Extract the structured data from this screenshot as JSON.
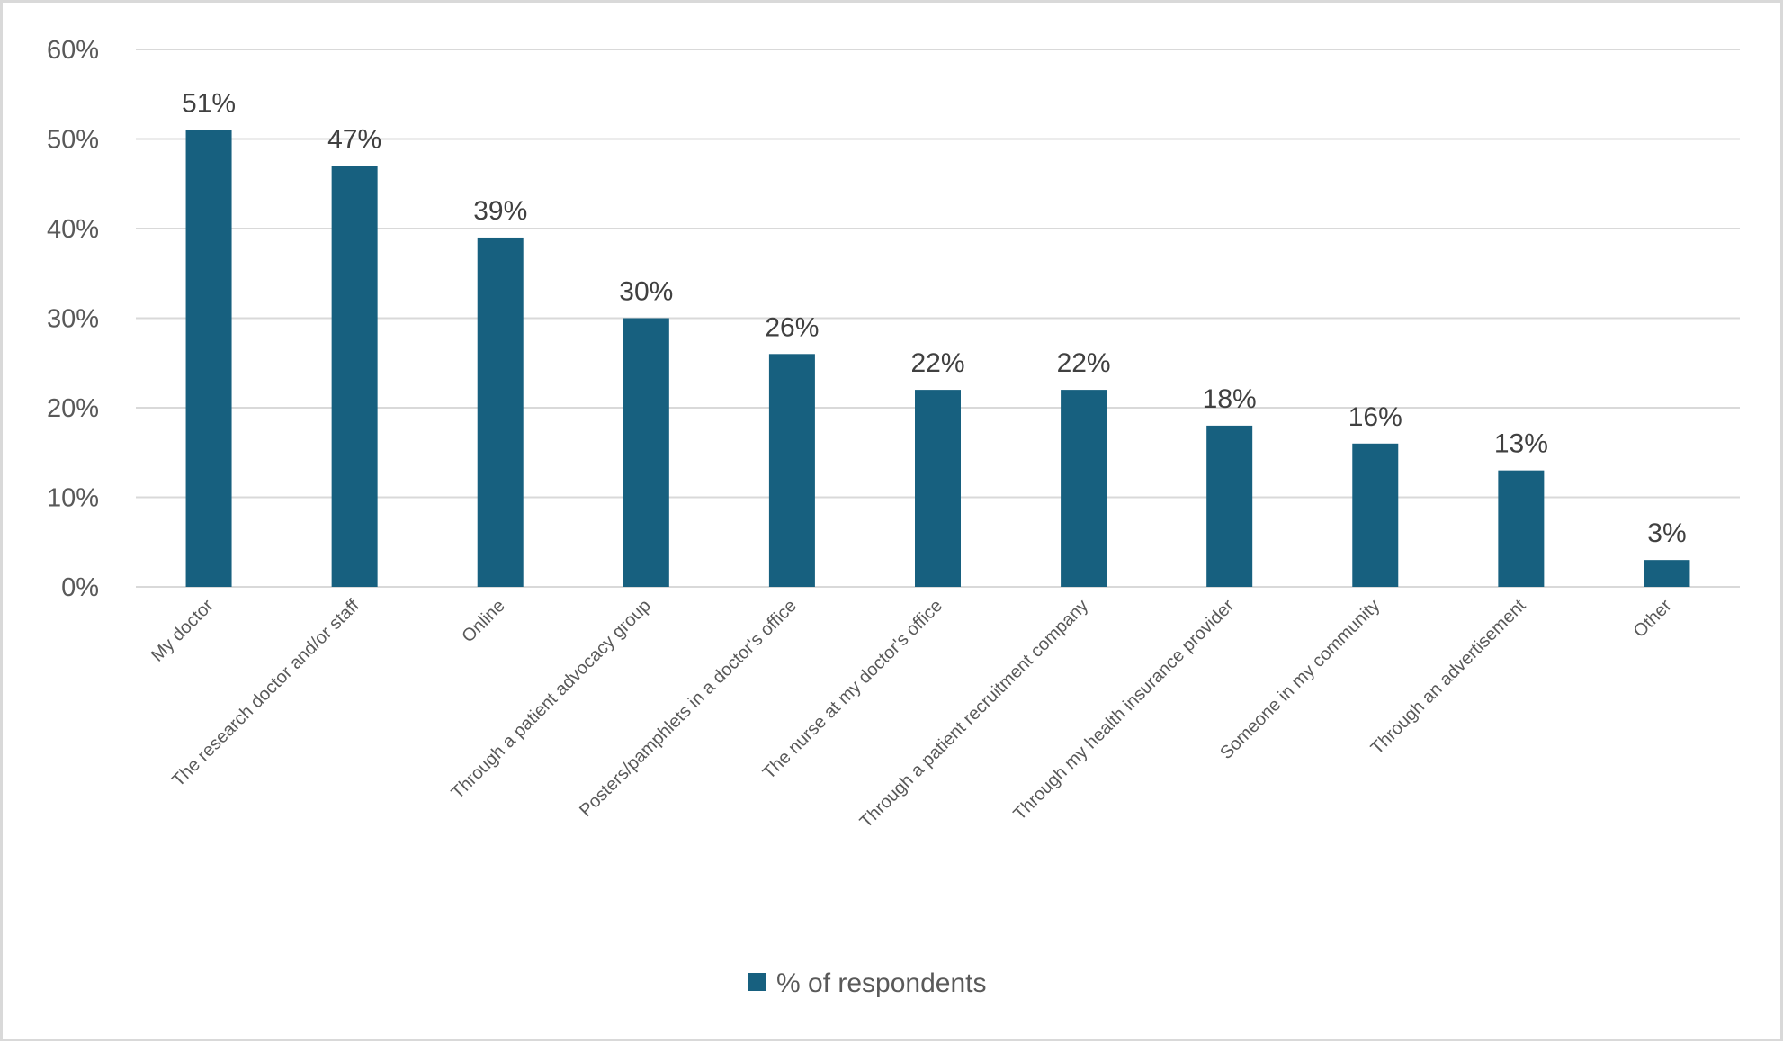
{
  "chart_data": {
    "type": "bar",
    "categories": [
      "My doctor",
      "The research doctor and/or staff",
      "Online",
      "Through a patient advocacy group",
      "Posters/pamphlets in a doctor's office",
      "The nurse at my doctor's office",
      "Through a patient recruitment company",
      "Through my health insurance provider",
      "Someone in my community",
      "Through an advertisement",
      "Other"
    ],
    "series": [
      {
        "name": "% of respondents",
        "values": [
          51,
          47,
          39,
          30,
          26,
          22,
          22,
          18,
          16,
          13,
          3
        ]
      }
    ],
    "data_labels": [
      "51%",
      "47%",
      "39%",
      "30%",
      "26%",
      "22%",
      "22%",
      "18%",
      "16%",
      "13%",
      "3%"
    ],
    "yticks": [
      "0%",
      "10%",
      "20%",
      "30%",
      "40%",
      "50%",
      "60%"
    ],
    "ylim": [
      0,
      60
    ],
    "grid": true,
    "legend_position": "bottom",
    "colors": {
      "bar": "#17607f",
      "grid": "#d9d9d9",
      "text": "#595959",
      "label": "#404040"
    }
  }
}
